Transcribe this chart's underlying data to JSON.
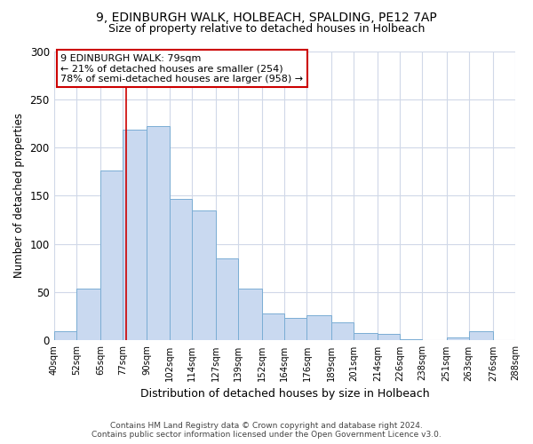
{
  "title": "9, EDINBURGH WALK, HOLBEACH, SPALDING, PE12 7AP",
  "subtitle": "Size of property relative to detached houses in Holbeach",
  "xlabel": "Distribution of detached houses by size in Holbeach",
  "ylabel": "Number of detached properties",
  "bar_edges": [
    40,
    52,
    65,
    77,
    90,
    102,
    114,
    127,
    139,
    152,
    164,
    176,
    189,
    201,
    214,
    226,
    238,
    251,
    263,
    276,
    288
  ],
  "bar_heights": [
    10,
    54,
    176,
    219,
    222,
    147,
    135,
    85,
    54,
    28,
    23,
    26,
    19,
    8,
    7,
    1,
    0,
    3,
    10,
    0
  ],
  "bar_color": "#c9d9f0",
  "bar_edge_color": "#7aadd4",
  "vline_x": 79,
  "vline_color": "#cc0000",
  "annotation_title": "9 EDINBURGH WALK: 79sqm",
  "annotation_line1": "← 21% of detached houses are smaller (254)",
  "annotation_line2": "78% of semi-detached houses are larger (958) →",
  "annotation_box_edge_color": "#cc0000",
  "ylim": [
    0,
    300
  ],
  "yticks": [
    0,
    50,
    100,
    150,
    200,
    250,
    300
  ],
  "tick_labels": [
    "40sqm",
    "52sqm",
    "65sqm",
    "77sqm",
    "90sqm",
    "102sqm",
    "114sqm",
    "127sqm",
    "139sqm",
    "152sqm",
    "164sqm",
    "176sqm",
    "189sqm",
    "201sqm",
    "214sqm",
    "226sqm",
    "238sqm",
    "251sqm",
    "263sqm",
    "276sqm",
    "288sqm"
  ],
  "footer1": "Contains HM Land Registry data © Crown copyright and database right 2024.",
  "footer2": "Contains public sector information licensed under the Open Government Licence v3.0.",
  "background_color": "#ffffff",
  "grid_color": "#d0d8e8"
}
